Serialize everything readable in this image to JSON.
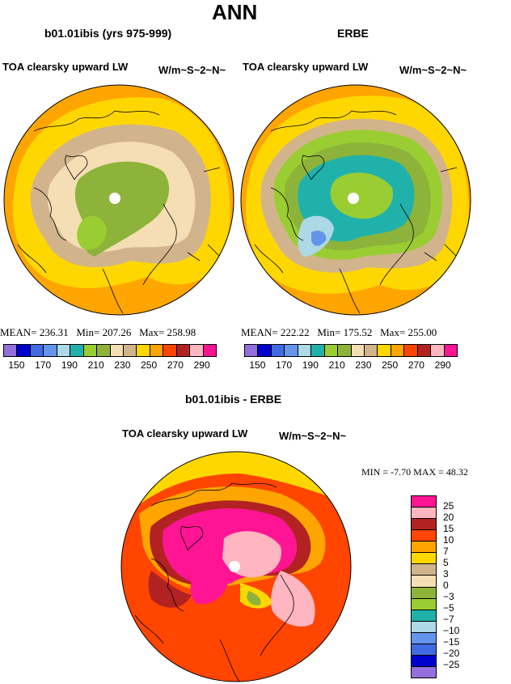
{
  "main_title": "ANN",
  "panel_left": {
    "case_title": "b01.01ibis (yrs 975-999)",
    "variable": "TOA clearsky upward LW",
    "units": "W/m~S~2~N~",
    "mean_label": "MEAN=",
    "mean": "236.31",
    "min_label": "Min=",
    "min": "207.26",
    "max_label": "Max=",
    "max": "258.98"
  },
  "panel_right": {
    "case_title": "ERBE",
    "variable": "TOA clearsky upward LW",
    "units": "W/m~S~2~N~",
    "mean_label": "MEAN=",
    "mean": "222.22",
    "min_label": "Min=",
    "min": "175.52",
    "max_label": "Max=",
    "max": "255.00"
  },
  "colorbar_top": {
    "colors": [
      "#9370db",
      "#0000cd",
      "#4169e1",
      "#6495ed",
      "#add8e6",
      "#20b2aa",
      "#9acd32",
      "#8db33a",
      "#f5deb3",
      "#d2b48c",
      "#ffd700",
      "#ffa500",
      "#ff4500",
      "#b22222",
      "#ffb6c1",
      "#ff1493"
    ],
    "labels": [
      "150",
      "170",
      "190",
      "210",
      "230",
      "250",
      "270",
      "290"
    ]
  },
  "panel_diff": {
    "case_title": "b01.01ibis - ERBE",
    "variable": "TOA clearsky upward LW",
    "units": "W/m~S~2~N~",
    "min_label": "MIN =",
    "min": "-7.70",
    "max_label": "MAX =",
    "max": "48.32"
  },
  "colorbar_diff": {
    "colors": [
      "#ff1493",
      "#ffb6c1",
      "#b22222",
      "#ff4500",
      "#ffa500",
      "#ffd700",
      "#d2b48c",
      "#f5deb3",
      "#8db33a",
      "#9acd32",
      "#20b2aa",
      "#add8e6",
      "#6495ed",
      "#4169e1",
      "#0000cd",
      "#9370db"
    ],
    "labels": [
      "25",
      "20",
      "15",
      "10",
      "7",
      "5",
      "3",
      "0",
      "−3",
      "−5",
      "−7",
      "−10",
      "−15",
      "−20",
      "−25"
    ]
  },
  "map_colors": {
    "yellow": "#ffd700",
    "orange": "#ffa500",
    "redorange": "#ff4500",
    "darkred": "#b22222",
    "pink": "#ff1493",
    "lightpink": "#ffb6c1",
    "tan": "#d2b48c",
    "wheat": "#f5deb3",
    "olive": "#8db33a",
    "yellowgreen": "#9acd32",
    "teal": "#20b2aa",
    "lightblue": "#add8e6"
  }
}
